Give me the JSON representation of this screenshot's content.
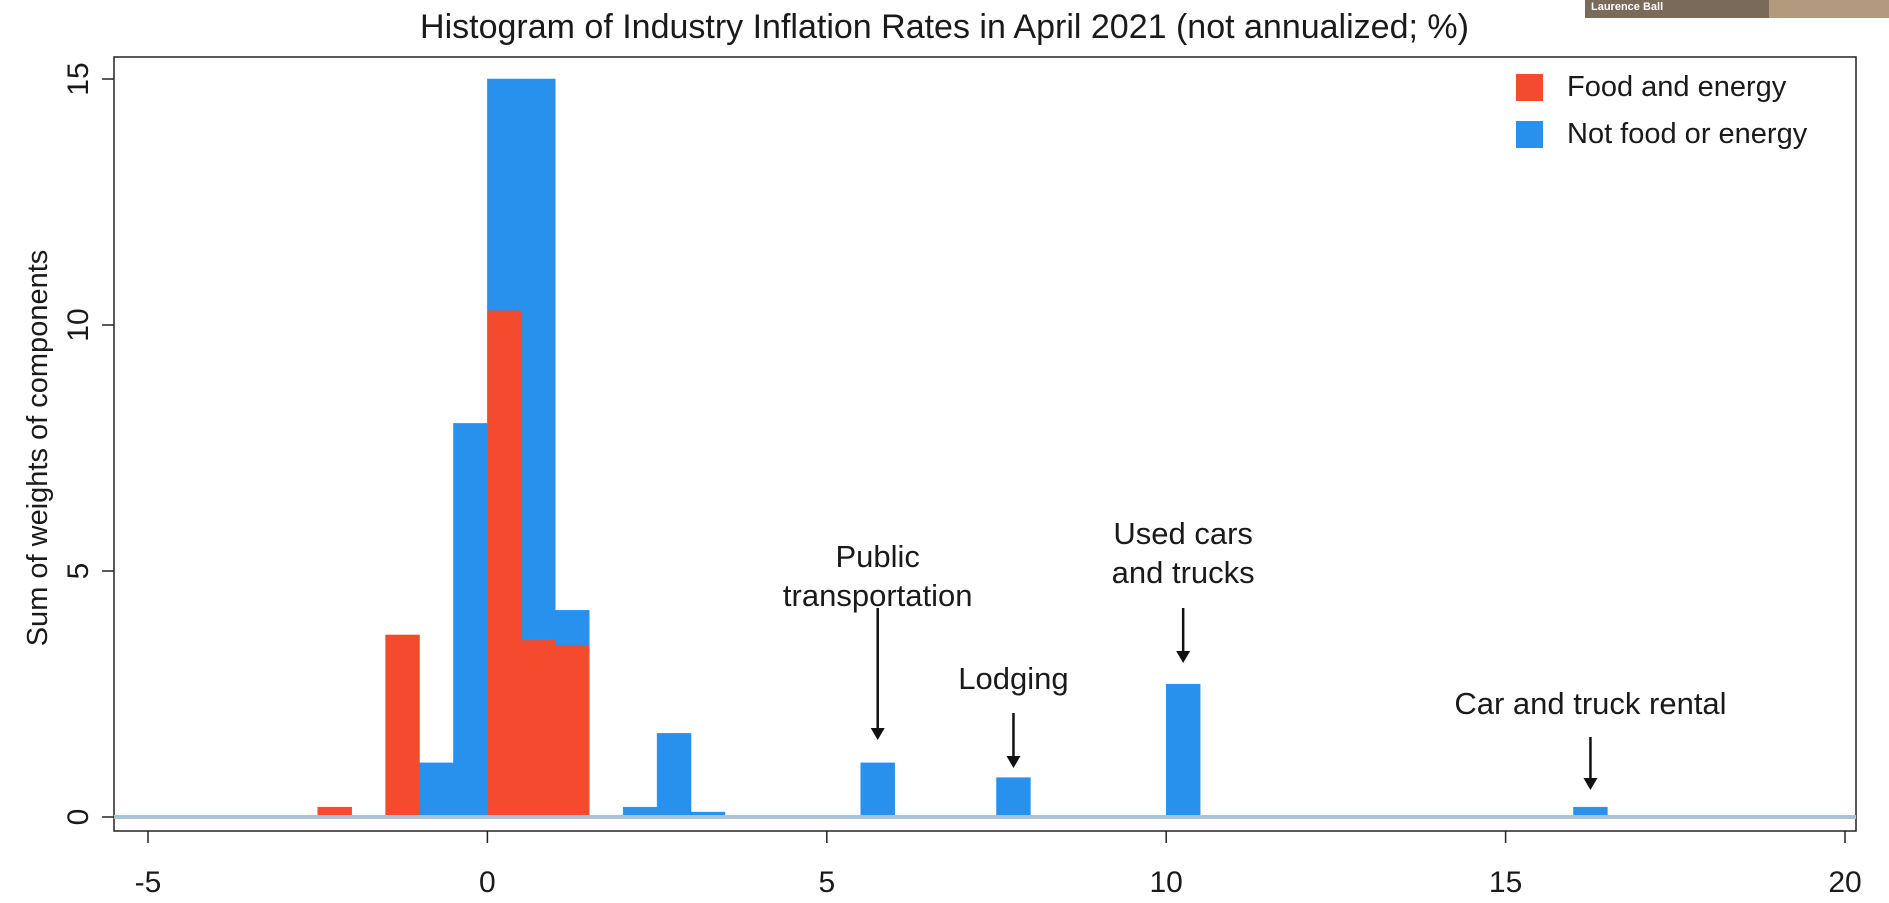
{
  "presenter": {
    "name": "Laurence Ball"
  },
  "chart_data": {
    "type": "bar",
    "title": "Histogram of Industry Inflation Rates in April 2021 (not annualized; %)",
    "xlabel": "",
    "ylabel": "Sum of weights of components",
    "xlim": [
      -5,
      20
    ],
    "ylim": [
      0,
      15
    ],
    "xticks": [
      "-5",
      "0",
      "5",
      "10",
      "15",
      "20"
    ],
    "yticks": [
      "0",
      "5",
      "10",
      "15"
    ],
    "bin_width": 0.5,
    "stacked": true,
    "grid": false,
    "legend_position": "top-right",
    "series": [
      {
        "name": "Food and energy",
        "color": "#f44a2e",
        "bins": [
          {
            "x0": -2.5,
            "x1": -2.0,
            "value": 0.2
          },
          {
            "x0": -1.5,
            "x1": -1.0,
            "value": 3.7
          },
          {
            "x0": 0.0,
            "x1": 0.5,
            "value": 10.3
          },
          {
            "x0": 0.5,
            "x1": 1.0,
            "value": 3.6
          },
          {
            "x0": 1.0,
            "x1": 1.5,
            "value": 3.5
          }
        ]
      },
      {
        "name": "Not food or energy",
        "color": "#2891ee",
        "bins": [
          {
            "x0": -1.0,
            "x1": -0.5,
            "value": 1.1
          },
          {
            "x0": -0.5,
            "x1": 0.0,
            "value": 8.0
          },
          {
            "x0": 0.0,
            "x1": 0.5,
            "value": 4.7
          },
          {
            "x0": 0.5,
            "x1": 1.0,
            "value": 11.4
          },
          {
            "x0": 1.0,
            "x1": 1.5,
            "value": 0.7
          },
          {
            "x0": 2.0,
            "x1": 2.5,
            "value": 0.2
          },
          {
            "x0": 2.5,
            "x1": 3.0,
            "value": 1.7
          },
          {
            "x0": 3.0,
            "x1": 3.5,
            "value": 0.1
          },
          {
            "x0": 5.5,
            "x1": 6.0,
            "value": 1.1
          },
          {
            "x0": 7.5,
            "x1": 8.0,
            "value": 0.8
          },
          {
            "x0": 10.0,
            "x1": 10.5,
            "value": 2.7
          },
          {
            "x0": 16.0,
            "x1": 16.5,
            "value": 0.2
          }
        ]
      }
    ],
    "annotations": [
      {
        "text": "Public\ntransportation",
        "x": 5.75
      },
      {
        "text": "Lodging",
        "x": 7.75
      },
      {
        "text": "Used cars\nand trucks",
        "x": 10.25
      },
      {
        "text": "Car and truck rental",
        "x": 16.25
      }
    ]
  }
}
